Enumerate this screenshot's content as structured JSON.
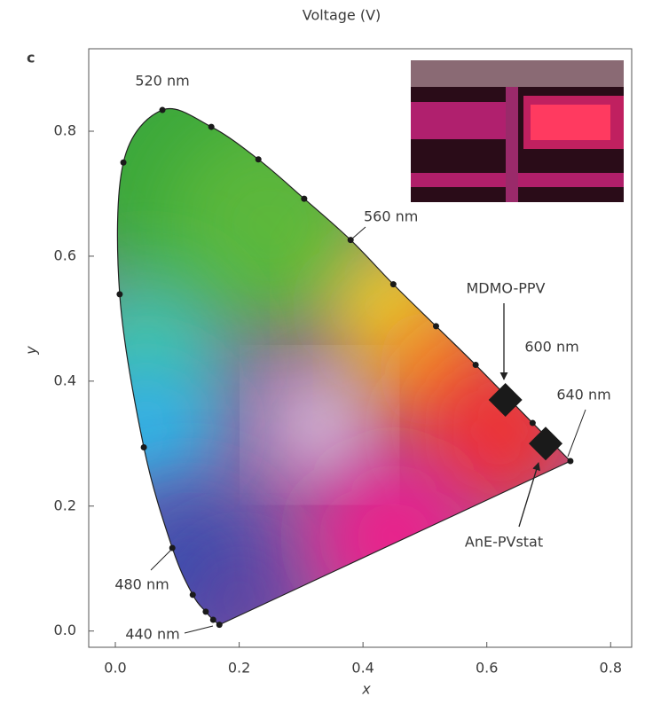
{
  "chart_data": {
    "type": "scatter",
    "title": "Voltage (V)",
    "panel_label": "c",
    "xlabel": "x",
    "ylabel": "y",
    "xlim": [
      -0.043,
      0.834
    ],
    "ylim": [
      -0.026,
      0.932
    ],
    "xticks": [
      {
        "value": 0,
        "label": "0.0"
      },
      0.2,
      0.4,
      0.6,
      0.8
    ],
    "yticks": [
      {
        "value": 0,
        "label": "0.0"
      },
      0.2,
      0.4,
      0.6,
      0.8
    ],
    "locus": {
      "x": [
        0.168,
        0.158,
        0.146,
        0.125,
        0.092,
        0.046,
        0.007,
        0.013,
        0.076,
        0.155,
        0.231,
        0.305,
        0.38,
        0.449,
        0.518,
        0.582,
        0.674,
        0.735
      ],
      "y": [
        0.01,
        0.018,
        0.031,
        0.058,
        0.133,
        0.294,
        0.539,
        0.75,
        0.834,
        0.807,
        0.755,
        0.692,
        0.626,
        0.555,
        0.488,
        0.426,
        0.333,
        0.272
      ]
    },
    "series": [
      {
        "name": "MDMO-PPV",
        "color": "#1a1a1a",
        "x": [
          0.63
        ],
        "y": [
          0.37
        ]
      },
      {
        "name": "AnE-PVstat",
        "color": "#1a1a1a",
        "x": [
          0.695
        ],
        "y": [
          0.3
        ]
      }
    ],
    "annotations": [
      "520 nm",
      "560 nm",
      "600 nm",
      "640 nm",
      "480 nm",
      "440 nm"
    ]
  }
}
